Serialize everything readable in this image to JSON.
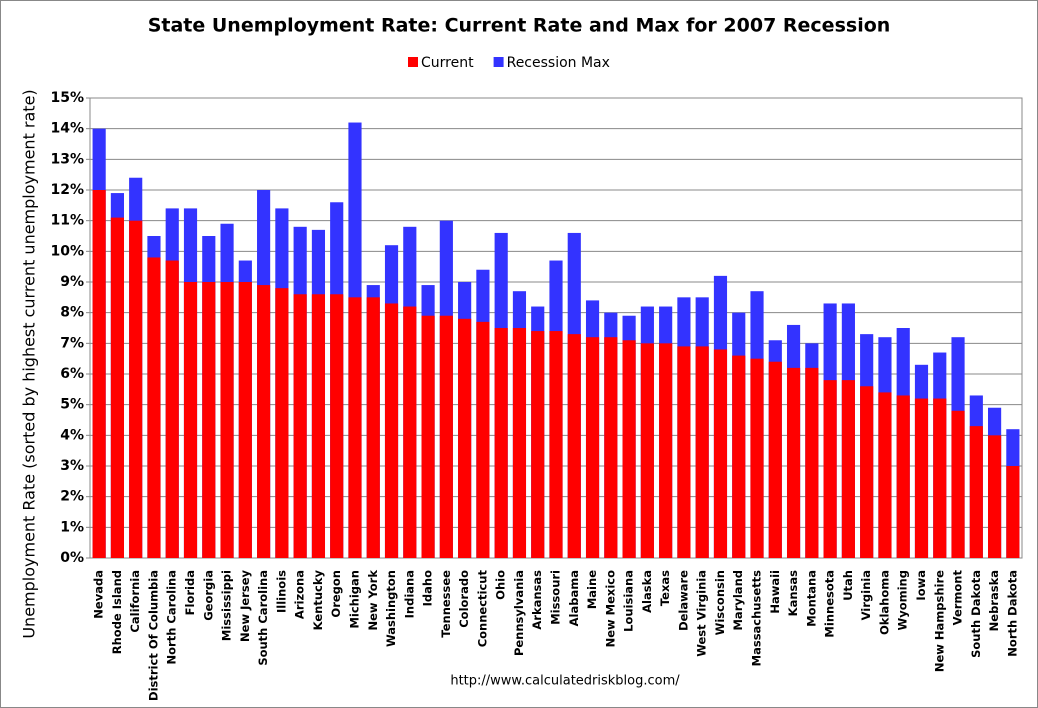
{
  "chart_data": {
    "type": "bar",
    "title": "State Unemployment Rate: Current Rate and Max for 2007 Recession",
    "y_label": "Unemployment Rate (sorted by highest current unemployment rate)",
    "source": "http://www.calculatedriskblog.com/",
    "legend": "top",
    "grid": true,
    "overlap": true,
    "categories": [
      "Nevada",
      "Rhode Island",
      "California",
      "District Of Columbia",
      "North Carolina",
      "Florida",
      "Georgia",
      "Mississippi",
      "New Jersey",
      "South Carolina",
      "Illinois",
      "Arizona",
      "Kentucky",
      "Oregon",
      "Michigan",
      "New York",
      "Washington",
      "Indiana",
      "Idaho",
      "Tennessee",
      "Colorado",
      "Connecticut",
      "Ohio",
      "Pennsylvania",
      "Arkansas",
      "Missouri",
      "Alabama",
      "Maine",
      "New Mexico",
      "Louisiana",
      "Alaska",
      "Texas",
      "Delaware",
      "West Virginia",
      "Wisconsin",
      "Maryland",
      "Massachusetts",
      "Hawaii",
      "Kansas",
      "Montana",
      "Minnesota",
      "Utah",
      "Virginia",
      "Oklahoma",
      "Wyoming",
      "Iowa",
      "New Hampshire",
      "Vermont",
      "South Dakota",
      "Nebraska",
      "North Dakota"
    ],
    "series": [
      {
        "name": "Current",
        "color": "#ff0000",
        "values": [
          12.0,
          11.1,
          11.0,
          9.8,
          9.7,
          9.0,
          9.0,
          9.0,
          9.0,
          8.9,
          8.8,
          8.6,
          8.6,
          8.6,
          8.5,
          8.5,
          8.3,
          8.2,
          7.9,
          7.9,
          7.8,
          7.7,
          7.5,
          7.5,
          7.4,
          7.4,
          7.3,
          7.2,
          7.2,
          7.1,
          7.0,
          7.0,
          6.9,
          6.9,
          6.8,
          6.6,
          6.5,
          6.4,
          6.2,
          6.2,
          5.8,
          5.8,
          5.6,
          5.4,
          5.3,
          5.2,
          5.2,
          4.8,
          4.3,
          4.0,
          3.0
        ]
      },
      {
        "name": "Recession Max",
        "color": "#3333ff",
        "values": [
          14.0,
          11.9,
          12.4,
          10.5,
          11.4,
          11.4,
          10.5,
          10.9,
          9.7,
          12.0,
          11.4,
          10.8,
          10.7,
          11.6,
          14.2,
          8.9,
          10.2,
          10.8,
          8.9,
          11.0,
          9.0,
          9.4,
          10.6,
          8.7,
          8.2,
          9.7,
          10.6,
          8.4,
          8.0,
          7.9,
          8.2,
          8.2,
          8.5,
          8.5,
          9.2,
          8.0,
          8.7,
          7.1,
          7.6,
          7.0,
          8.3,
          8.3,
          7.3,
          7.2,
          7.5,
          6.3,
          6.7,
          7.2,
          5.3,
          4.9,
          4.2
        ]
      }
    ],
    "ylim": [
      0,
      15
    ],
    "yticks": [
      {
        "value": 0,
        "label": "0%"
      },
      {
        "value": 1,
        "label": "1%"
      },
      {
        "value": 2,
        "label": "2%"
      },
      {
        "value": 3,
        "label": "3%"
      },
      {
        "value": 4,
        "label": "4%"
      },
      {
        "value": 5,
        "label": "5%"
      },
      {
        "value": 6,
        "label": "6%"
      },
      {
        "value": 7,
        "label": "7%"
      },
      {
        "value": 8,
        "label": "8%"
      },
      {
        "value": 9,
        "label": "9%"
      },
      {
        "value": 10,
        "label": "10%"
      },
      {
        "value": 11,
        "label": "11%"
      },
      {
        "value": 12,
        "label": "12%"
      },
      {
        "value": 13,
        "label": "13%"
      },
      {
        "value": 14,
        "label": "14%"
      },
      {
        "value": 15,
        "label": "15%"
      }
    ]
  }
}
